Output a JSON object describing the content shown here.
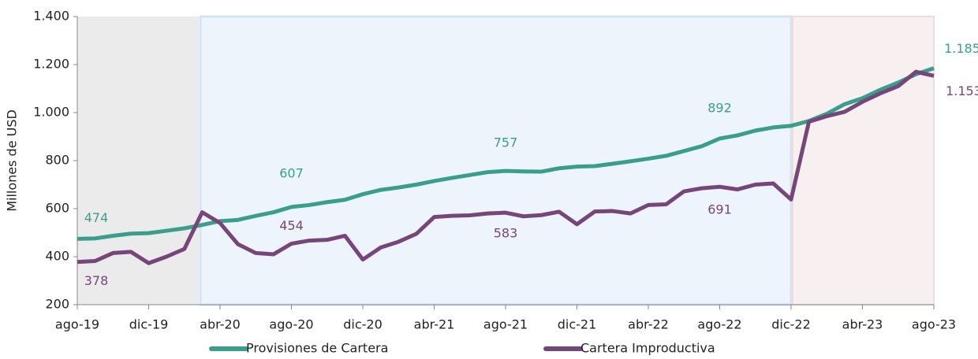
{
  "chart_data": {
    "type": "line",
    "y_axis_label": "Millones de USD",
    "categories": [
      "ago-19",
      null,
      null,
      null,
      "dic-19",
      null,
      null,
      null,
      "abr-20",
      null,
      null,
      null,
      "ago-20",
      null,
      null,
      null,
      "dic-20",
      null,
      null,
      null,
      "abr-21",
      null,
      null,
      null,
      "ago-21",
      null,
      null,
      null,
      "dic-21",
      null,
      null,
      null,
      "abr-22",
      null,
      null,
      null,
      "ago-22",
      null,
      null,
      null,
      "dic-22",
      null,
      null,
      null,
      "abr-23",
      null,
      null,
      null,
      "ago-23"
    ],
    "series": [
      {
        "name": "Provisiones de Cartera",
        "color": "#3a9e8c",
        "values": [
          474,
          476,
          487,
          496,
          498,
          508,
          518,
          532,
          548,
          553,
          570,
          585,
          607,
          615,
          627,
          637,
          660,
          678,
          688,
          700,
          715,
          728,
          740,
          752,
          757,
          755,
          754,
          768,
          775,
          777,
          787,
          797,
          808,
          820,
          840,
          860,
          892,
          905,
          925,
          938,
          945,
          965,
          995,
          1035,
          1060,
          1095,
          1125,
          1160,
          1185
        ],
        "value_labels": [
          "474",
          null,
          null,
          null,
          null,
          null,
          null,
          null,
          null,
          null,
          null,
          null,
          "607",
          null,
          null,
          null,
          null,
          null,
          null,
          null,
          null,
          null,
          null,
          null,
          "757",
          null,
          null,
          null,
          null,
          null,
          null,
          null,
          null,
          null,
          null,
          null,
          "892",
          null,
          null,
          null,
          null,
          null,
          null,
          null,
          null,
          null,
          null,
          null,
          "1.185"
        ]
      },
      {
        "name": "Cartera Improductiva",
        "color": "#76457a",
        "values": [
          378,
          382,
          415,
          420,
          373,
          400,
          432,
          585,
          540,
          452,
          415,
          410,
          454,
          467,
          470,
          487,
          388,
          438,
          462,
          495,
          565,
          570,
          572,
          580,
          583,
          568,
          573,
          587,
          535,
          588,
          590,
          580,
          615,
          618,
          672,
          685,
          691,
          680,
          700,
          705,
          638,
          962,
          985,
          1003,
          1045,
          1080,
          1110,
          1170,
          1153
        ],
        "value_labels": [
          "378",
          null,
          null,
          null,
          null,
          null,
          null,
          null,
          null,
          null,
          null,
          null,
          "454",
          null,
          null,
          null,
          null,
          null,
          null,
          null,
          null,
          null,
          null,
          null,
          "583",
          null,
          null,
          null,
          null,
          null,
          null,
          null,
          null,
          null,
          null,
          null,
          "691",
          null,
          null,
          null,
          null,
          null,
          null,
          null,
          null,
          null,
          null,
          null,
          "1.153"
        ]
      }
    ],
    "ylim": [
      200,
      1400
    ],
    "yticks": [
      200,
      400,
      600,
      800,
      {
        "value": 1000,
        "label": "1.000"
      },
      {
        "value": 1200,
        "label": "1.200"
      },
      {
        "value": 1400,
        "label": "1.400"
      }
    ],
    "grid": false,
    "legend": "bottom"
  }
}
